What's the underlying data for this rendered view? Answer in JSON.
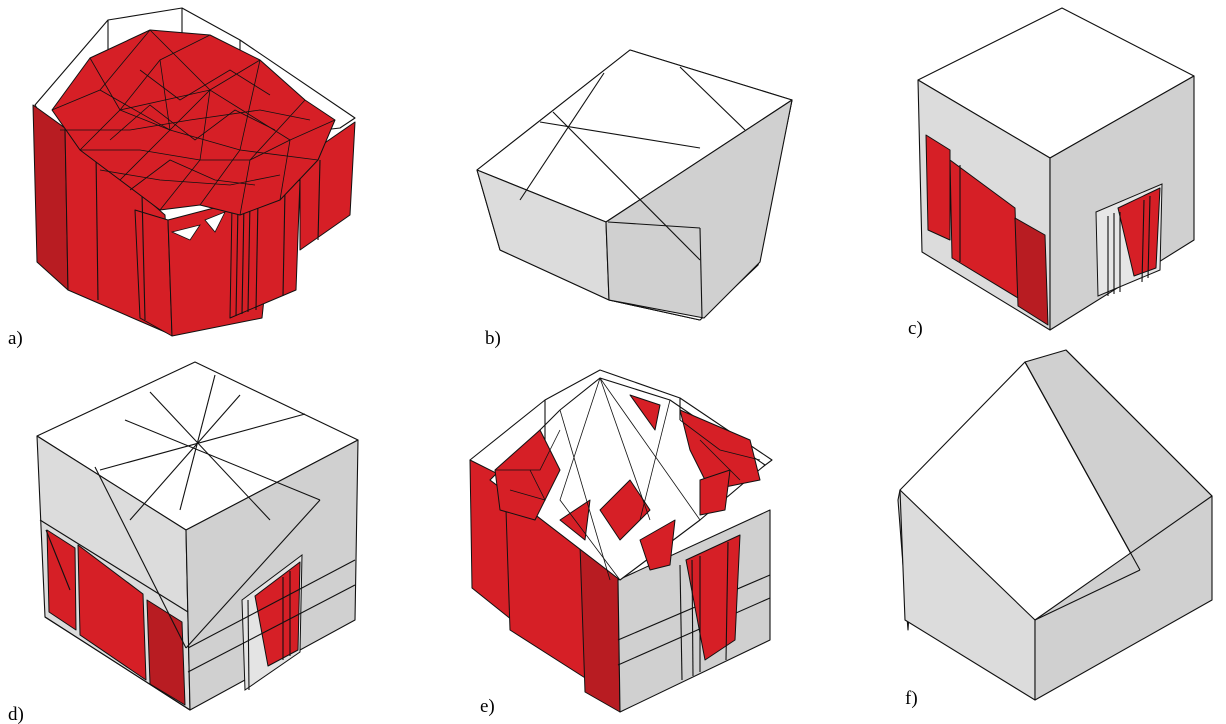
{
  "panels": [
    {
      "id": "a",
      "label": "a)"
    },
    {
      "id": "b",
      "label": "b)"
    },
    {
      "id": "c",
      "label": "c)"
    },
    {
      "id": "d",
      "label": "d)"
    },
    {
      "id": "e",
      "label": "e)"
    },
    {
      "id": "f",
      "label": "f)"
    }
  ],
  "colors": {
    "mesh_red": "#d61f26",
    "mesh_red_dark": "#b81c22",
    "roof_white": "#ffffff",
    "wall_grey": "#d8d8d8",
    "edge": "#111111"
  }
}
